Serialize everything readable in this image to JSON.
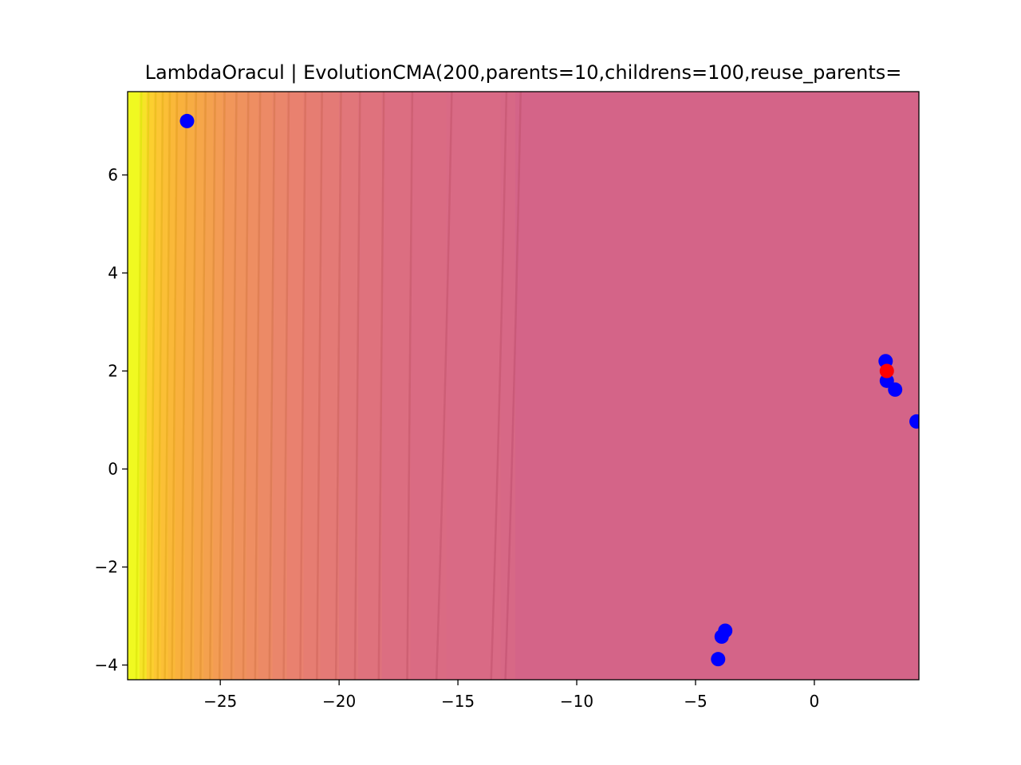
{
  "chart_data": {
    "type": "scatter",
    "title": "LambdaOracul | EvolutionCMA(200,parents=10,childrens=100,reuse_parents=",
    "xlabel": "",
    "ylabel": "",
    "xlim": [
      -28.9,
      4.4
    ],
    "ylim": [
      -4.3,
      7.7
    ],
    "x_ticks": [
      -25,
      -20,
      -15,
      -10,
      -5,
      0
    ],
    "x_tick_labels": [
      "−25",
      "−20",
      "−15",
      "−10",
      "−5",
      "0"
    ],
    "y_ticks": [
      -4,
      -2,
      0,
      2,
      4,
      6
    ],
    "y_tick_labels": [
      "−4",
      "−2",
      "0",
      "2",
      "4",
      "6"
    ],
    "background": "filled contour plot (plasma colormap), value varies mostly along x",
    "colors": {
      "points": "#0000ff",
      "best_point": "#ff0000",
      "contour_low": "#d46488",
      "contour_high": "#f0f921"
    },
    "contour_levels_x": [
      -12.6,
      -13.2,
      -15.5,
      -17.0,
      -18.2,
      -19.2,
      -20.0,
      -20.8,
      -21.5,
      -22.2,
      -22.8,
      -23.4,
      -23.9,
      -24.4,
      -24.9,
      -25.3,
      -25.7,
      -26.1,
      -26.5,
      -26.9,
      -27.2,
      -27.5,
      -27.8,
      -28.1,
      -28.4
    ],
    "series": [
      {
        "points": [
          {
            "x": -26.4,
            "y": 7.1
          },
          {
            "x": 3.0,
            "y": 2.2
          },
          {
            "x": 3.05,
            "y": 1.8
          },
          {
            "x": 3.4,
            "y": 1.62
          },
          {
            "x": 4.3,
            "y": 0.97
          },
          {
            "x": -3.75,
            "y": -3.3
          },
          {
            "x": -3.9,
            "y": -3.42
          },
          {
            "x": -4.05,
            "y": -3.88
          }
        ]
      },
      {
        "points": [
          {
            "x": 3.05,
            "y": 2.0
          }
        ]
      }
    ]
  }
}
